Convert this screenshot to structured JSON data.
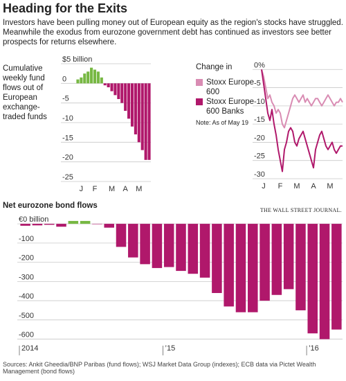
{
  "header": {
    "title": "Heading for the Exits",
    "subtitle": "Investors have been pulling money out of European equity as the region's stocks have struggled. Meanwhile the exodus from eurozone government debt has continued as investors see better prospects for returns elsewhere."
  },
  "chart_data": [
    {
      "type": "bar",
      "title": "Cumulative weekly fund flows out of European exchange-traded funds",
      "categories": [
        null,
        "J",
        null,
        null,
        null,
        "F",
        null,
        null,
        null,
        null,
        "M",
        null,
        null,
        null,
        "A",
        null,
        null,
        null,
        "M",
        null,
        null,
        null
      ],
      "values": [
        1,
        1.5,
        2.5,
        3,
        4,
        3.5,
        3,
        1.5,
        -0.5,
        -1,
        -2,
        -3,
        -4,
        -5,
        -7,
        -9,
        -11,
        -13,
        -15,
        -17,
        -19.5,
        -19.5
      ],
      "color": "#b0186b",
      "positive_color": "#77b843",
      "ylim": [
        -25,
        5
      ],
      "yticks": [
        {
          "value": 5,
          "label": "$5 billion"
        },
        0,
        -5,
        -10,
        -15,
        -20,
        -25
      ],
      "grid": true
    },
    {
      "type": "line",
      "title": "Change in",
      "note": "Note: As of May 19",
      "categories": [
        null,
        "J",
        null,
        null,
        null,
        null,
        null,
        null,
        null,
        "F",
        null,
        null,
        null,
        null,
        null,
        null,
        null,
        "M",
        null,
        null,
        null,
        null,
        null,
        null,
        null,
        "A",
        null,
        null,
        null,
        null,
        null,
        null,
        null,
        "M",
        null,
        null,
        null,
        null,
        null,
        null
      ],
      "series": [
        {
          "name": "Stoxx Europe 600",
          "color": "#d98cb3",
          "values": [
            0,
            -2,
            -5,
            -8,
            -7,
            -9,
            -10,
            -12,
            -11,
            -12,
            -15,
            -16,
            -14,
            -12,
            -10,
            -8,
            -7,
            -8,
            -9,
            -8,
            -7,
            -9,
            -8,
            -9,
            -10,
            -9,
            -8,
            -8,
            -9,
            -10,
            -9,
            -8,
            -7,
            -8,
            -9,
            -10,
            -9,
            -9,
            -8,
            -9
          ]
        },
        {
          "name": "Stoxx Europe 600 Banks",
          "color": "#b0186b",
          "values": [
            0,
            -4,
            -8,
            -12,
            -14,
            -11,
            -15,
            -18,
            -22,
            -25,
            -28,
            -22,
            -20,
            -17,
            -16,
            -17,
            -20,
            -21,
            -19,
            -18,
            -17,
            -19,
            -21,
            -23,
            -25,
            -27,
            -22,
            -20,
            -18,
            -17,
            -19,
            -21,
            -22,
            -21,
            -20,
            -22,
            -23,
            -22,
            -21,
            -21
          ]
        }
      ],
      "ylim": [
        -30,
        1
      ],
      "yticks": [
        {
          "value": 0,
          "label": "0%"
        },
        -5,
        -10,
        -15,
        -20,
        -25,
        -30
      ],
      "grid": true
    },
    {
      "type": "bar",
      "title": "Net eurozone bond flows",
      "categories": [
        "2014",
        null,
        null,
        null,
        null,
        null,
        null,
        null,
        null,
        null,
        null,
        null,
        "’15",
        null,
        null,
        null,
        null,
        null,
        null,
        null,
        null,
        null,
        null,
        null,
        "’16",
        null,
        null
      ],
      "values": [
        -10,
        -8,
        -5,
        -15,
        15,
        15,
        -2,
        -20,
        -120,
        -175,
        -210,
        -230,
        -225,
        -245,
        -260,
        -280,
        -360,
        -430,
        -460,
        -460,
        -400,
        -370,
        -340,
        -450,
        -570,
        -600,
        -550
      ],
      "color": "#b0186b",
      "positive_color": "#77b843",
      "ylim": [
        -670,
        40
      ],
      "yticks": [
        {
          "value": 0,
          "label": "€0 billion"
        },
        -100,
        -200,
        -300,
        -400,
        -500,
        -600
      ],
      "grid": true
    }
  ],
  "footer": {
    "source": "Sources: Ankit Gheedia/BNP Paribas (fund flows); WSJ Market Data Group (indexes); ECB data via Pictet Wealth Management (bond flows)",
    "brand": "THE WALL STREET JOURNAL."
  }
}
